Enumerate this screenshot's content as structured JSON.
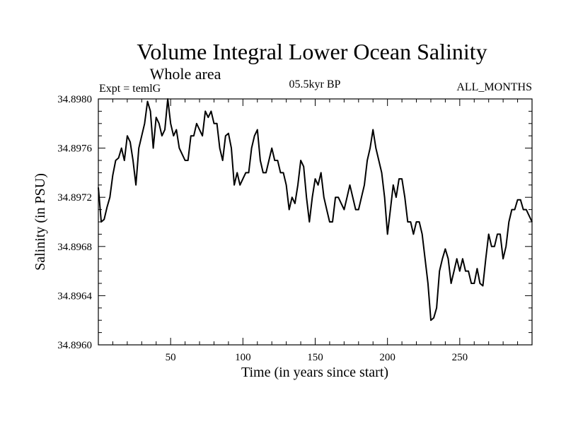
{
  "chart_data": {
    "type": "line",
    "title": "Volume Integral Lower Ocean Salinity",
    "subtitle": "Whole area",
    "experiment_label": "Expt = temlG",
    "period_label": "05.5kyr BP",
    "season_label": "ALL_MONTHS",
    "xlabel": "Time (in years since start)",
    "ylabel": "Salinity (in PSU)",
    "xlim": [
      0,
      300
    ],
    "ylim": [
      34.896,
      34.898
    ],
    "xticks": [
      50,
      100,
      150,
      200,
      250
    ],
    "xtick_labels": [
      "50",
      "100",
      "150",
      "200",
      "250"
    ],
    "yticks": [
      34.896,
      34.8964,
      34.8968,
      34.8972,
      34.8976,
      34.898
    ],
    "ytick_labels": [
      "34.8960",
      "34.8964",
      "34.8968",
      "34.8972",
      "34.8976",
      "34.8980"
    ],
    "grid": false,
    "series": [
      {
        "name": "Salinity",
        "color": "#000000",
        "points": [
          [
            0,
            34.89728
          ],
          [
            2,
            34.897
          ],
          [
            4,
            34.89702
          ],
          [
            6,
            34.89712
          ],
          [
            8,
            34.8972
          ],
          [
            10,
            34.89738
          ],
          [
            12,
            34.8975
          ],
          [
            14,
            34.89752
          ],
          [
            16,
            34.8976
          ],
          [
            18,
            34.8975
          ],
          [
            20,
            34.8977
          ],
          [
            22,
            34.89765
          ],
          [
            24,
            34.8975
          ],
          [
            26,
            34.8973
          ],
          [
            28,
            34.8976
          ],
          [
            30,
            34.8977
          ],
          [
            32,
            34.8978
          ],
          [
            34,
            34.89798
          ],
          [
            36,
            34.8979
          ],
          [
            38,
            34.8976
          ],
          [
            40,
            34.89785
          ],
          [
            42,
            34.8978
          ],
          [
            44,
            34.8977
          ],
          [
            46,
            34.89775
          ],
          [
            48,
            34.898
          ],
          [
            50,
            34.8978
          ],
          [
            52,
            34.8977
          ],
          [
            54,
            34.89775
          ],
          [
            56,
            34.8976
          ],
          [
            58,
            34.89755
          ],
          [
            60,
            34.8975
          ],
          [
            62,
            34.8975
          ],
          [
            64,
            34.8977
          ],
          [
            66,
            34.8977
          ],
          [
            68,
            34.8978
          ],
          [
            70,
            34.89775
          ],
          [
            72,
            34.8977
          ],
          [
            74,
            34.8979
          ],
          [
            76,
            34.89785
          ],
          [
            78,
            34.8979
          ],
          [
            80,
            34.8978
          ],
          [
            82,
            34.8978
          ],
          [
            84,
            34.8976
          ],
          [
            86,
            34.8975
          ],
          [
            88,
            34.8977
          ],
          [
            90,
            34.89772
          ],
          [
            92,
            34.8976
          ],
          [
            94,
            34.8973
          ],
          [
            96,
            34.8974
          ],
          [
            98,
            34.8973
          ],
          [
            100,
            34.89735
          ],
          [
            102,
            34.8974
          ],
          [
            104,
            34.8974
          ],
          [
            106,
            34.8976
          ],
          [
            108,
            34.8977
          ],
          [
            110,
            34.89775
          ],
          [
            112,
            34.8975
          ],
          [
            114,
            34.8974
          ],
          [
            116,
            34.8974
          ],
          [
            118,
            34.8975
          ],
          [
            120,
            34.8976
          ],
          [
            122,
            34.8975
          ],
          [
            124,
            34.8975
          ],
          [
            126,
            34.8974
          ],
          [
            128,
            34.8974
          ],
          [
            130,
            34.8973
          ],
          [
            132,
            34.8971
          ],
          [
            134,
            34.8972
          ],
          [
            136,
            34.89715
          ],
          [
            138,
            34.8973
          ],
          [
            140,
            34.8975
          ],
          [
            142,
            34.89745
          ],
          [
            144,
            34.8972
          ],
          [
            146,
            34.897
          ],
          [
            148,
            34.8972
          ],
          [
            150,
            34.89735
          ],
          [
            152,
            34.8973
          ],
          [
            154,
            34.8974
          ],
          [
            156,
            34.8972
          ],
          [
            158,
            34.8971
          ],
          [
            160,
            34.897
          ],
          [
            162,
            34.897
          ],
          [
            164,
            34.8972
          ],
          [
            166,
            34.8972
          ],
          [
            168,
            34.89715
          ],
          [
            170,
            34.8971
          ],
          [
            172,
            34.8972
          ],
          [
            174,
            34.8973
          ],
          [
            176,
            34.8972
          ],
          [
            178,
            34.8971
          ],
          [
            180,
            34.8971
          ],
          [
            182,
            34.8972
          ],
          [
            184,
            34.8973
          ],
          [
            186,
            34.8975
          ],
          [
            188,
            34.8976
          ],
          [
            190,
            34.89775
          ],
          [
            192,
            34.8976
          ],
          [
            194,
            34.8975
          ],
          [
            196,
            34.8974
          ],
          [
            198,
            34.8972
          ],
          [
            200,
            34.8969
          ],
          [
            202,
            34.8971
          ],
          [
            204,
            34.8973
          ],
          [
            206,
            34.8972
          ],
          [
            208,
            34.89735
          ],
          [
            210,
            34.89735
          ],
          [
            212,
            34.8972
          ],
          [
            214,
            34.897
          ],
          [
            216,
            34.897
          ],
          [
            218,
            34.8969
          ],
          [
            220,
            34.897
          ],
          [
            222,
            34.897
          ],
          [
            224,
            34.8969
          ],
          [
            226,
            34.8967
          ],
          [
            228,
            34.8965
          ],
          [
            230,
            34.8962
          ],
          [
            232,
            34.89622
          ],
          [
            234,
            34.8963
          ],
          [
            236,
            34.8966
          ],
          [
            238,
            34.8967
          ],
          [
            240,
            34.89678
          ],
          [
            242,
            34.8967
          ],
          [
            244,
            34.8965
          ],
          [
            246,
            34.8966
          ],
          [
            248,
            34.8967
          ],
          [
            250,
            34.8966
          ],
          [
            252,
            34.8967
          ],
          [
            254,
            34.8966
          ],
          [
            256,
            34.8966
          ],
          [
            258,
            34.8965
          ],
          [
            260,
            34.8965
          ],
          [
            262,
            34.89662
          ],
          [
            264,
            34.8965
          ],
          [
            266,
            34.89648
          ],
          [
            268,
            34.8967
          ],
          [
            270,
            34.8969
          ],
          [
            272,
            34.8968
          ],
          [
            274,
            34.8968
          ],
          [
            276,
            34.8969
          ],
          [
            278,
            34.8969
          ],
          [
            280,
            34.8967
          ],
          [
            282,
            34.8968
          ],
          [
            284,
            34.897
          ],
          [
            286,
            34.8971
          ],
          [
            288,
            34.8971
          ],
          [
            290,
            34.89718
          ],
          [
            292,
            34.89718
          ],
          [
            294,
            34.8971
          ],
          [
            296,
            34.8971
          ],
          [
            298,
            34.89705
          ],
          [
            300,
            34.897
          ]
        ]
      }
    ]
  }
}
